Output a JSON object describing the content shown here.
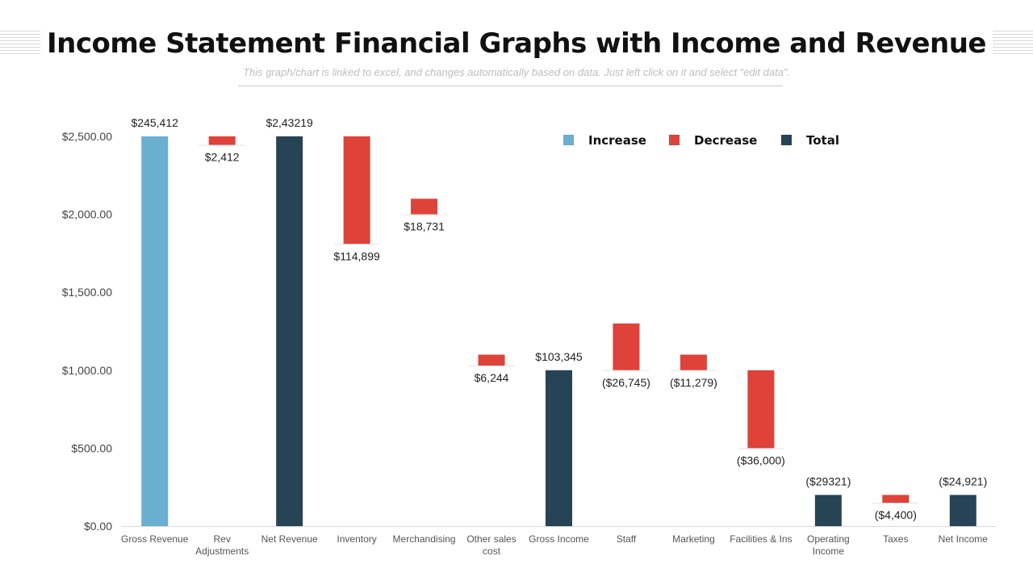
{
  "page": {
    "title": "Income Statement Financial Graphs with Income and Revenue",
    "subtitle": "This graph/chart is linked to excel, and changes automatically based on data. Just left click on it and select “edit data”."
  },
  "colors": {
    "increase": "#6aaed0",
    "decrease": "#de4239",
    "total": "#274356"
  },
  "chart_data": {
    "type": "bar",
    "subtype": "waterfall",
    "ylim": [
      0,
      2500
    ],
    "yticks": [
      "$0.00",
      "$500.00",
      "$1,000.00",
      "$1,500.00",
      "$2,000.00",
      "$2,500.00"
    ],
    "ytick_values": [
      0,
      500,
      1000,
      1500,
      2000,
      2500
    ],
    "grid": false,
    "legend_position": "top-right",
    "legend": [
      {
        "name": "Increase",
        "kind": "increase"
      },
      {
        "name": "Decrease",
        "kind": "decrease"
      },
      {
        "name": "Total",
        "kind": "total"
      }
    ],
    "bars": [
      {
        "category": [
          "Gross Revenue"
        ],
        "kind": "increase",
        "start": 0,
        "end": 2500,
        "label": "$245,412",
        "label_pos": "above"
      },
      {
        "category": [
          "Rev",
          "Adjustments"
        ],
        "kind": "decrease",
        "start": 2445,
        "end": 2500,
        "label": "$2,412",
        "label_pos": "below"
      },
      {
        "category": [
          "Net Revenue"
        ],
        "kind": "total",
        "start": 0,
        "end": 2500,
        "label": "$2,43219",
        "label_pos": "above"
      },
      {
        "category": [
          "Inventory"
        ],
        "kind": "decrease",
        "start": 1810,
        "end": 2500,
        "label": "$114,899",
        "label_pos": "below"
      },
      {
        "category": [
          "Merchandising"
        ],
        "kind": "decrease",
        "start": 2000,
        "end": 2100,
        "label": "$18,731",
        "label_pos": "below"
      },
      {
        "category": [
          "Other sales",
          "cost"
        ],
        "kind": "decrease",
        "start": 1030,
        "end": 1100,
        "label": "$6,244",
        "label_pos": "below"
      },
      {
        "category": [
          "Gross Income"
        ],
        "kind": "total",
        "start": 0,
        "end": 1000,
        "label": "$103,345",
        "label_pos": "above"
      },
      {
        "category": [
          "Staff"
        ],
        "kind": "decrease",
        "start": 1000,
        "end": 1300,
        "label": "($26,745)",
        "label_pos": "below"
      },
      {
        "category": [
          "Marketing"
        ],
        "kind": "decrease",
        "start": 1000,
        "end": 1100,
        "label": "($11,279)",
        "label_pos": "below"
      },
      {
        "category": [
          "Facilities & Ins"
        ],
        "kind": "decrease",
        "start": 500,
        "end": 1000,
        "label": "($36,000)",
        "label_pos": "below"
      },
      {
        "category": [
          "Operating",
          "Income"
        ],
        "kind": "total",
        "start": 0,
        "end": 200,
        "label": "($29321)",
        "label_pos": "above"
      },
      {
        "category": [
          "Taxes"
        ],
        "kind": "decrease",
        "start": 150,
        "end": 200,
        "label": "($4,400)",
        "label_pos": "below"
      },
      {
        "category": [
          "Net Income"
        ],
        "kind": "total",
        "start": 0,
        "end": 200,
        "label": "($24,921)",
        "label_pos": "above"
      }
    ]
  }
}
